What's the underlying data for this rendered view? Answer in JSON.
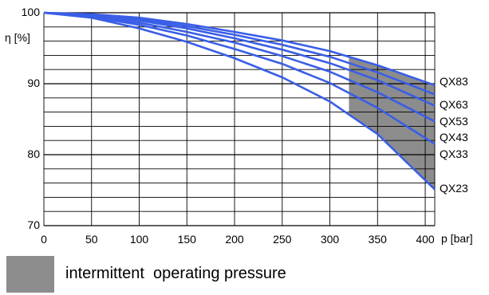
{
  "chart_data": {
    "type": "line",
    "ylabel": "η [%]",
    "xlabel": "p [bar]",
    "xlim": [
      0,
      410
    ],
    "ylim": [
      70,
      100
    ],
    "x_ticks": [
      0,
      50,
      100,
      150,
      200,
      250,
      300,
      350,
      400
    ],
    "y_ticks": [
      70,
      80,
      90,
      100
    ],
    "grid": true,
    "shaded_region": {
      "x_from": 320,
      "x_to": 410,
      "label": "intermittent  operating pressure"
    },
    "series": [
      {
        "name": "QX83",
        "x": [
          0,
          50,
          100,
          150,
          200,
          250,
          300,
          350,
          410
        ],
        "y": [
          100,
          99.8,
          99.3,
          98.4,
          97.3,
          96.1,
          94.6,
          92.6,
          89.8
        ]
      },
      {
        "name": "QX63",
        "x": [
          0,
          50,
          100,
          150,
          200,
          250,
          300,
          350,
          410
        ],
        "y": [
          100,
          99.7,
          99.1,
          98.1,
          96.9,
          95.5,
          93.8,
          91.6,
          88.5
        ]
      },
      {
        "name": "QX53",
        "x": [
          0,
          50,
          100,
          150,
          200,
          250,
          300,
          350,
          410
        ],
        "y": [
          100,
          99.6,
          98.9,
          97.8,
          96.4,
          94.8,
          92.9,
          90.5,
          86.9
        ]
      },
      {
        "name": "QX43",
        "x": [
          0,
          50,
          100,
          150,
          200,
          250,
          300,
          350,
          410
        ],
        "y": [
          100,
          99.5,
          98.6,
          97.3,
          95.8,
          93.9,
          91.7,
          88.8,
          84.7
        ]
      },
      {
        "name": "QX33",
        "x": [
          0,
          50,
          100,
          150,
          200,
          250,
          300,
          350,
          410
        ],
        "y": [
          100,
          99.4,
          98.3,
          96.8,
          94.9,
          92.8,
          90.1,
          86.6,
          81.5
        ]
      },
      {
        "name": "QX23",
        "x": [
          0,
          50,
          100,
          150,
          200,
          250,
          300,
          350,
          410
        ],
        "y": [
          100,
          99.3,
          97.8,
          95.9,
          93.6,
          90.9,
          87.5,
          82.9,
          75.1
        ]
      }
    ]
  },
  "colors": {
    "series": "#3a5ee6",
    "shade": "#8c8c8c",
    "grid": "#000000"
  },
  "legend": {
    "label": "intermittent  operating pressure"
  }
}
